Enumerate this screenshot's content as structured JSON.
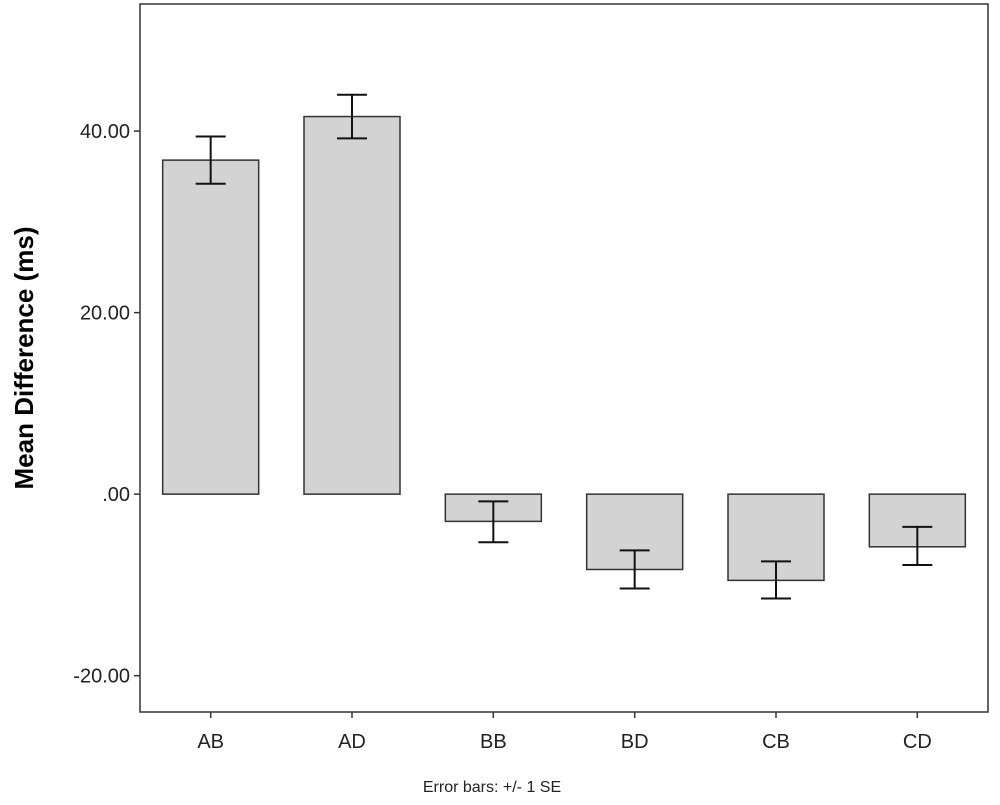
{
  "chart_data": {
    "type": "bar",
    "title": "",
    "xlabel": "",
    "ylabel": "Mean Difference (ms)",
    "categories": [
      "AB",
      "AD",
      "BB",
      "BD",
      "CB",
      "CD"
    ],
    "values": [
      36.8,
      41.6,
      -3.0,
      -8.3,
      -9.5,
      -5.8
    ],
    "error_bars": {
      "type": "+/- 1 SE",
      "lower": [
        34.2,
        39.2,
        -5.3,
        -10.4,
        -11.5,
        -7.8
      ],
      "upper": [
        39.4,
        44.0,
        -0.8,
        -6.2,
        -7.4,
        -3.6
      ]
    },
    "ylim": [
      -24,
      54
    ],
    "yticks": [
      -20,
      0,
      20,
      40
    ],
    "ytick_labels": [
      "-20.00",
      ".00",
      "20.00",
      "40.00"
    ],
    "grid": false,
    "bar_color": "#d3d3d3",
    "bar_edge_color": "#333333",
    "footnote": "Error bars: +/- 1 SE"
  }
}
